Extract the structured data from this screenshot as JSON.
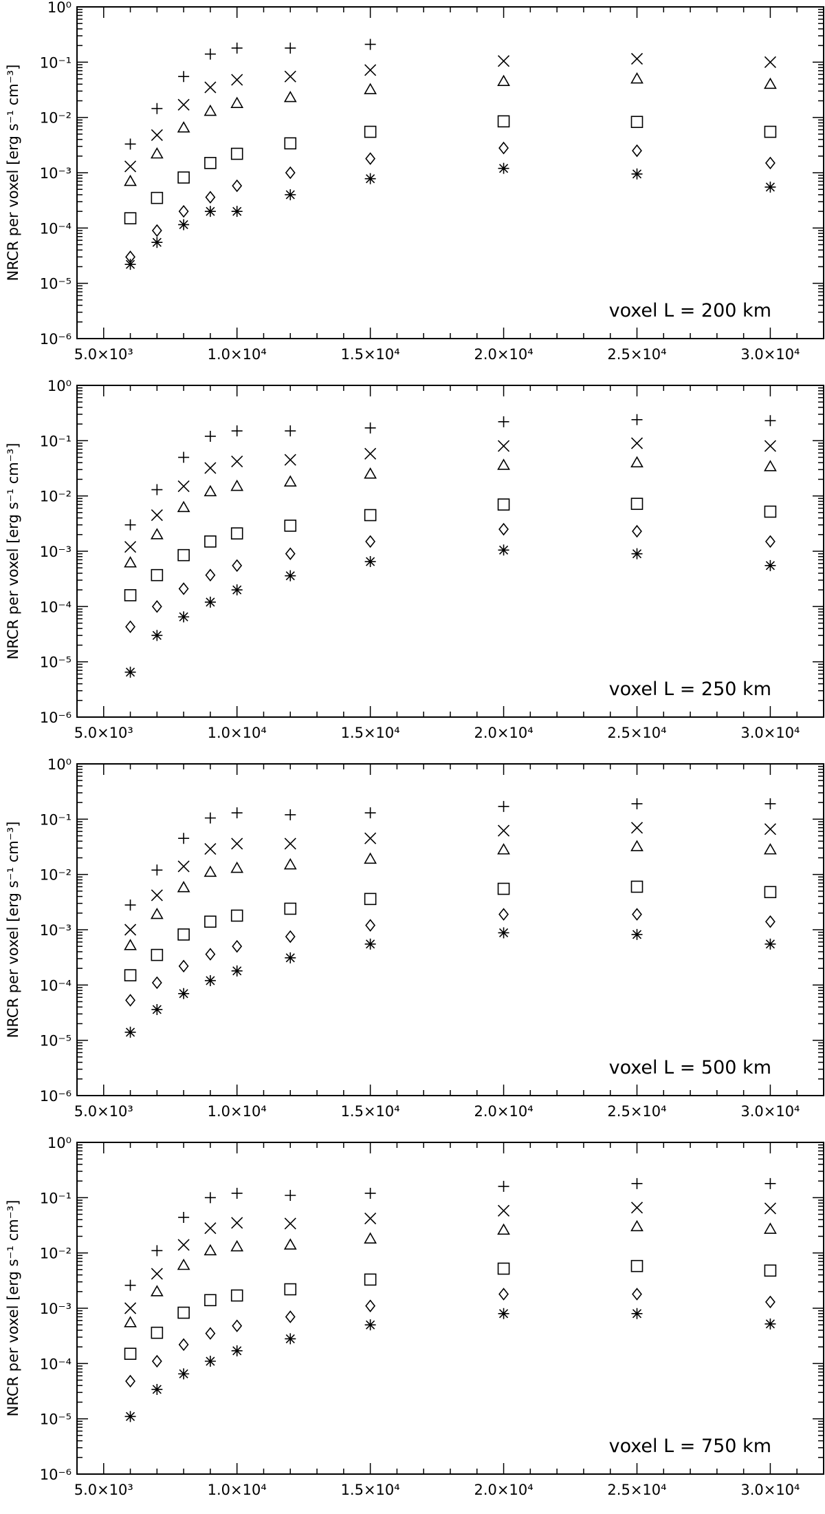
{
  "chart_data": [
    {
      "type": "scatter",
      "ylabel": "NRCR per voxel [erg s⁻¹ cm⁻³]",
      "annotation": "voxel L = 200 km",
      "xlim": [
        4000,
        32000
      ],
      "ylim": [
        1e-06,
        1
      ],
      "yscale": "log",
      "x_tick_labels": [
        "5.0×10³",
        "1.0×10⁴",
        "1.5×10⁴",
        "2.0×10⁴",
        "2.5×10⁴",
        "3.0×10⁴"
      ],
      "y_tick_labels": [
        "10⁰",
        "10⁻¹",
        "10⁻²",
        "10⁻³",
        "10⁻⁴",
        "10⁻⁵",
        "10⁻⁶"
      ],
      "x": [
        6000,
        7000,
        8000,
        9000,
        10000,
        12000,
        15000,
        20000,
        25000,
        30000
      ],
      "series": [
        {
          "marker": "plus",
          "values": [
            0.0033,
            0.0145,
            0.055,
            0.14,
            0.18,
            0.18,
            0.21,
            null,
            null,
            null
          ]
        },
        {
          "marker": "cross",
          "values": [
            0.0013,
            0.0048,
            0.017,
            0.035,
            0.048,
            0.055,
            0.072,
            0.105,
            0.115,
            0.1
          ]
        },
        {
          "marker": "triangle",
          "values": [
            0.0007,
            0.0022,
            0.0065,
            0.013,
            0.018,
            0.023,
            0.032,
            0.045,
            0.05,
            0.04
          ]
        },
        {
          "marker": "square",
          "values": [
            0.00015,
            0.00035,
            0.00082,
            0.0015,
            0.0022,
            0.0034,
            0.0055,
            0.0085,
            0.0083,
            0.0055
          ]
        },
        {
          "marker": "diamond",
          "values": [
            3e-05,
            9e-05,
            0.0002,
            0.00036,
            0.00058,
            0.001,
            0.0018,
            0.0028,
            0.0025,
            0.0015
          ]
        },
        {
          "marker": "asterisk",
          "values": [
            2.2e-05,
            5.5e-05,
            0.000115,
            0.0002,
            0.0002,
            0.0004,
            0.00078,
            0.0012,
            0.00095,
            0.00055
          ]
        }
      ]
    },
    {
      "type": "scatter",
      "ylabel": "NRCR per voxel [erg s⁻¹ cm⁻³]",
      "annotation": "voxel L = 250 km",
      "xlim": [
        4000,
        32000
      ],
      "ylim": [
        1e-06,
        1
      ],
      "yscale": "log",
      "x_tick_labels": [
        "5.0×10³",
        "1.0×10⁴",
        "1.5×10⁴",
        "2.0×10⁴",
        "2.5×10⁴",
        "3.0×10⁴"
      ],
      "y_tick_labels": [
        "10⁰",
        "10⁻¹",
        "10⁻²",
        "10⁻³",
        "10⁻⁴",
        "10⁻⁵",
        "10⁻⁶"
      ],
      "x": [
        6000,
        7000,
        8000,
        9000,
        10000,
        12000,
        15000,
        20000,
        25000,
        30000
      ],
      "series": [
        {
          "marker": "plus",
          "values": [
            0.003,
            0.013,
            0.05,
            0.12,
            0.15,
            0.15,
            0.17,
            0.22,
            0.24,
            0.23
          ]
        },
        {
          "marker": "cross",
          "values": [
            0.0012,
            0.0045,
            0.015,
            0.032,
            0.042,
            0.045,
            0.058,
            0.08,
            0.09,
            0.08
          ]
        },
        {
          "marker": "triangle",
          "values": [
            0.00062,
            0.002,
            0.0062,
            0.012,
            0.015,
            0.018,
            0.025,
            0.036,
            0.04,
            0.034
          ]
        },
        {
          "marker": "square",
          "values": [
            0.00016,
            0.00037,
            0.00085,
            0.0015,
            0.0021,
            0.0029,
            0.0045,
            0.007,
            0.0072,
            0.0052
          ]
        },
        {
          "marker": "diamond",
          "values": [
            4.3e-05,
            0.0001,
            0.00021,
            0.00037,
            0.00055,
            0.0009,
            0.0015,
            0.0025,
            0.0023,
            0.0015
          ]
        },
        {
          "marker": "asterisk",
          "values": [
            6.5e-06,
            3e-05,
            6.5e-05,
            0.00012,
            0.0002,
            0.00036,
            0.00065,
            0.00105,
            0.0009,
            0.00055
          ]
        }
      ]
    },
    {
      "type": "scatter",
      "ylabel": "NRCR per voxel [erg s⁻¹ cm⁻³]",
      "annotation": "voxel L = 500 km",
      "xlim": [
        4000,
        32000
      ],
      "ylim": [
        1e-06,
        1
      ],
      "yscale": "log",
      "x_tick_labels": [
        "5.0×10³",
        "1.0×10⁴",
        "1.5×10⁴",
        "2.0×10⁴",
        "2.5×10⁴",
        "3.0×10⁴"
      ],
      "y_tick_labels": [
        "10⁰",
        "10⁻¹",
        "10⁻²",
        "10⁻³",
        "10⁻⁴",
        "10⁻⁵",
        "10⁻⁶"
      ],
      "x": [
        6000,
        7000,
        8000,
        9000,
        10000,
        12000,
        15000,
        20000,
        25000,
        30000
      ],
      "series": [
        {
          "marker": "plus",
          "values": [
            0.0028,
            0.012,
            0.045,
            0.105,
            0.13,
            0.12,
            0.13,
            0.17,
            0.19,
            0.19
          ]
        },
        {
          "marker": "cross",
          "values": [
            0.001,
            0.0042,
            0.014,
            0.029,
            0.036,
            0.036,
            0.045,
            0.062,
            0.07,
            0.066
          ]
        },
        {
          "marker": "triangle",
          "values": [
            0.00052,
            0.0019,
            0.0058,
            0.011,
            0.013,
            0.015,
            0.019,
            0.028,
            0.032,
            0.028
          ]
        },
        {
          "marker": "square",
          "values": [
            0.00015,
            0.00035,
            0.00082,
            0.0014,
            0.0018,
            0.0024,
            0.0036,
            0.0055,
            0.006,
            0.0048
          ]
        },
        {
          "marker": "diamond",
          "values": [
            5.3e-05,
            0.00011,
            0.00022,
            0.00036,
            0.0005,
            0.00075,
            0.0012,
            0.0019,
            0.0019,
            0.0014
          ]
        },
        {
          "marker": "asterisk",
          "values": [
            1.4e-05,
            3.6e-05,
            7e-05,
            0.00012,
            0.00018,
            0.00031,
            0.00055,
            0.00088,
            0.00082,
            0.00055
          ]
        }
      ]
    },
    {
      "type": "scatter",
      "ylabel": "NRCR per voxel [erg s⁻¹ cm⁻³]",
      "annotation": "voxel L = 750 km",
      "xlim": [
        4000,
        32000
      ],
      "ylim": [
        1e-06,
        1
      ],
      "yscale": "log",
      "x_tick_labels": [
        "5.0×10³",
        "1.0×10⁴",
        "1.5×10⁴",
        "2.0×10⁴",
        "2.5×10⁴",
        "3.0×10⁴"
      ],
      "y_tick_labels": [
        "10⁰",
        "10⁻¹",
        "10⁻²",
        "10⁻³",
        "10⁻⁴",
        "10⁻⁵",
        "10⁻⁶"
      ],
      "x": [
        6000,
        7000,
        8000,
        9000,
        10000,
        12000,
        15000,
        20000,
        25000,
        30000
      ],
      "series": [
        {
          "marker": "plus",
          "values": [
            0.0026,
            0.011,
            0.044,
            0.1,
            0.12,
            0.11,
            0.12,
            0.16,
            0.18,
            0.18
          ]
        },
        {
          "marker": "cross",
          "values": [
            0.001,
            0.0042,
            0.014,
            0.028,
            0.035,
            0.034,
            0.042,
            0.058,
            0.066,
            0.064
          ]
        },
        {
          "marker": "triangle",
          "values": [
            0.00055,
            0.002,
            0.006,
            0.011,
            0.013,
            0.014,
            0.018,
            0.026,
            0.03,
            0.027
          ]
        },
        {
          "marker": "square",
          "values": [
            0.00015,
            0.00036,
            0.00083,
            0.0014,
            0.0017,
            0.0022,
            0.0033,
            0.0052,
            0.0058,
            0.0048
          ]
        },
        {
          "marker": "diamond",
          "values": [
            4.8e-05,
            0.00011,
            0.00022,
            0.00035,
            0.00048,
            0.0007,
            0.0011,
            0.0018,
            0.0018,
            0.0013
          ]
        },
        {
          "marker": "asterisk",
          "values": [
            1.1e-05,
            3.4e-05,
            6.5e-05,
            0.00011,
            0.00017,
            0.00028,
            0.0005,
            0.0008,
            0.0008,
            0.00052
          ]
        }
      ]
    }
  ]
}
